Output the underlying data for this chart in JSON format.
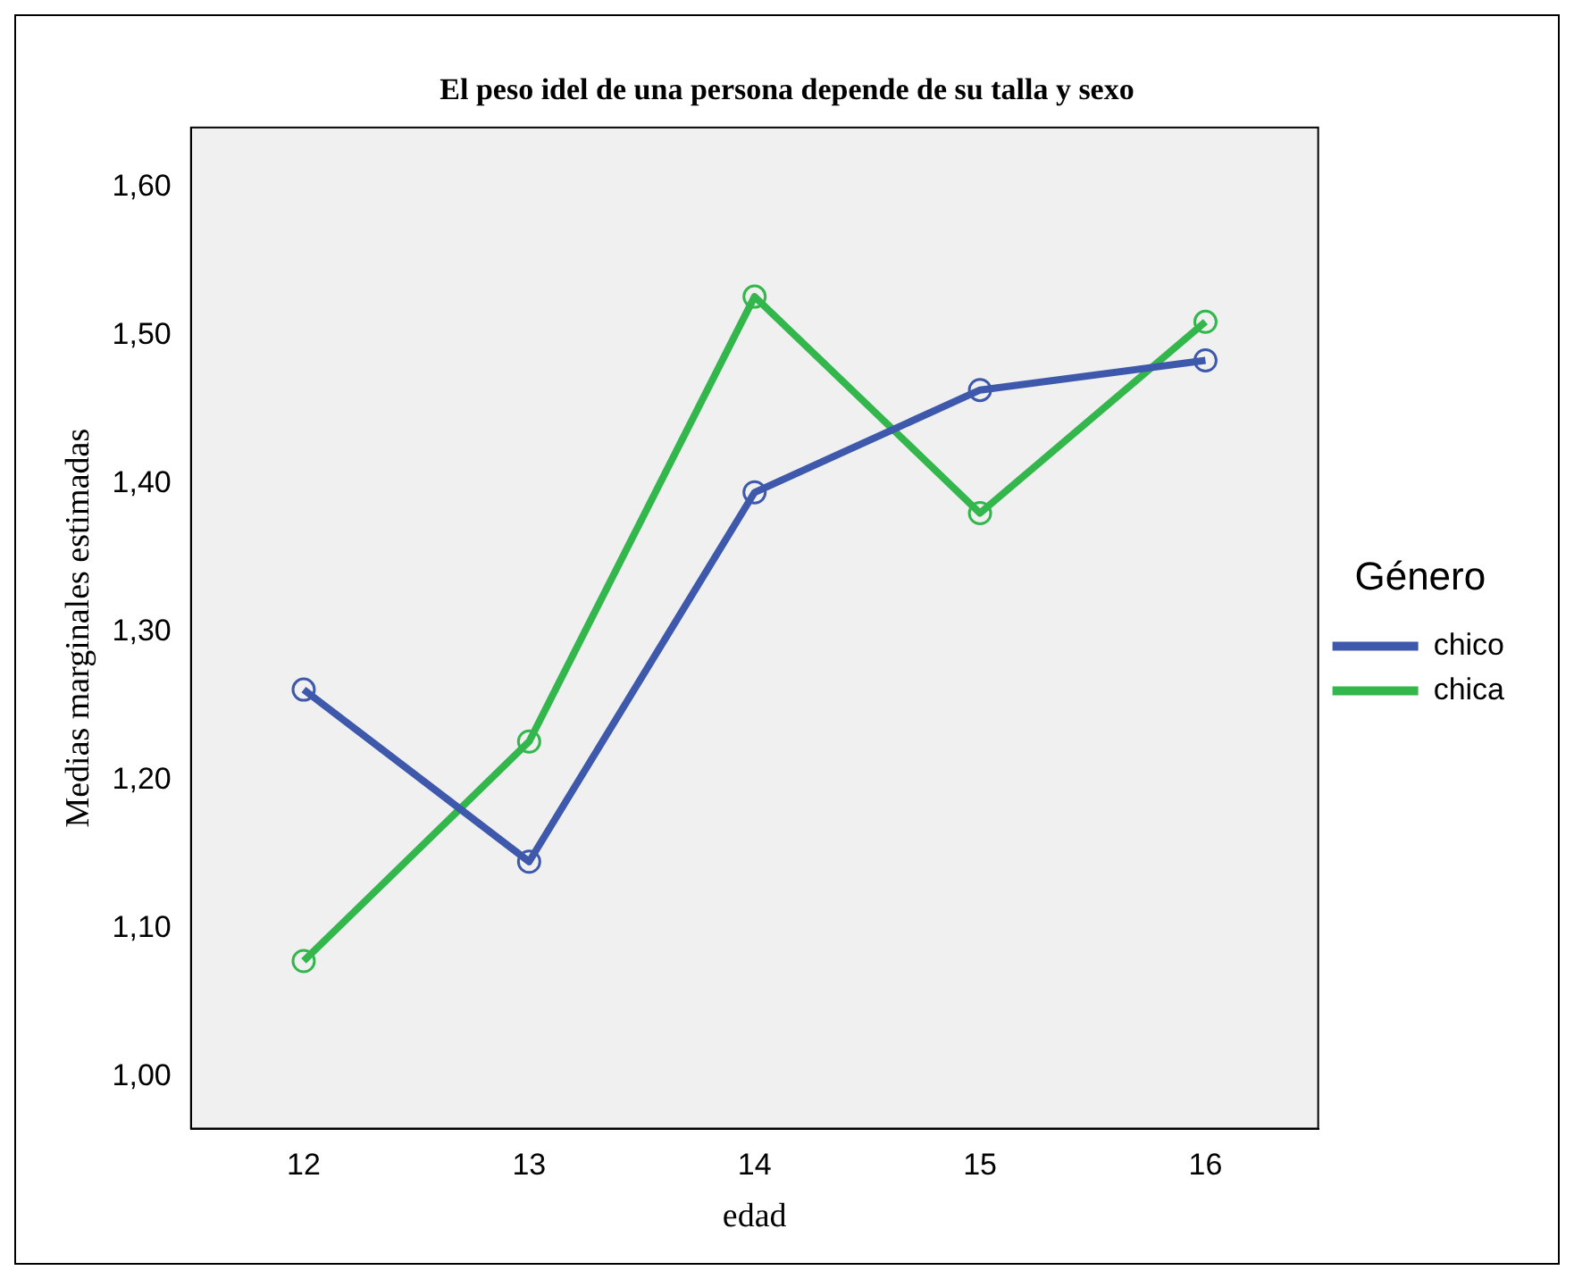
{
  "chart_data": {
    "type": "line",
    "title": "El peso idel de una persona depende de su talla y sexo",
    "xlabel": "edad",
    "ylabel": "Medias marginales estimadas",
    "legend_title": "Género",
    "categories": [
      "12",
      "13",
      "14",
      "15",
      "16"
    ],
    "series": [
      {
        "name": "chico",
        "color": "#3e58ac",
        "values": [
          1.261,
          1.145,
          1.394,
          1.463,
          1.483
        ]
      },
      {
        "name": "chica",
        "color": "#33b74c",
        "values": [
          1.078,
          1.226,
          1.526,
          1.38,
          1.509
        ]
      }
    ],
    "ylim": [
      0.965,
      1.64
    ],
    "yticks": [
      {
        "value": 1.0,
        "label": "1,00"
      },
      {
        "value": 1.1,
        "label": "1,10"
      },
      {
        "value": 1.2,
        "label": "1,20"
      },
      {
        "value": 1.3,
        "label": "1,30"
      },
      {
        "value": 1.4,
        "label": "1,40"
      },
      {
        "value": 1.5,
        "label": "1,50"
      },
      {
        "value": 1.6,
        "label": "1,60"
      }
    ],
    "grid": false,
    "legend": "right",
    "marker": "circle",
    "line_style": "solid"
  }
}
